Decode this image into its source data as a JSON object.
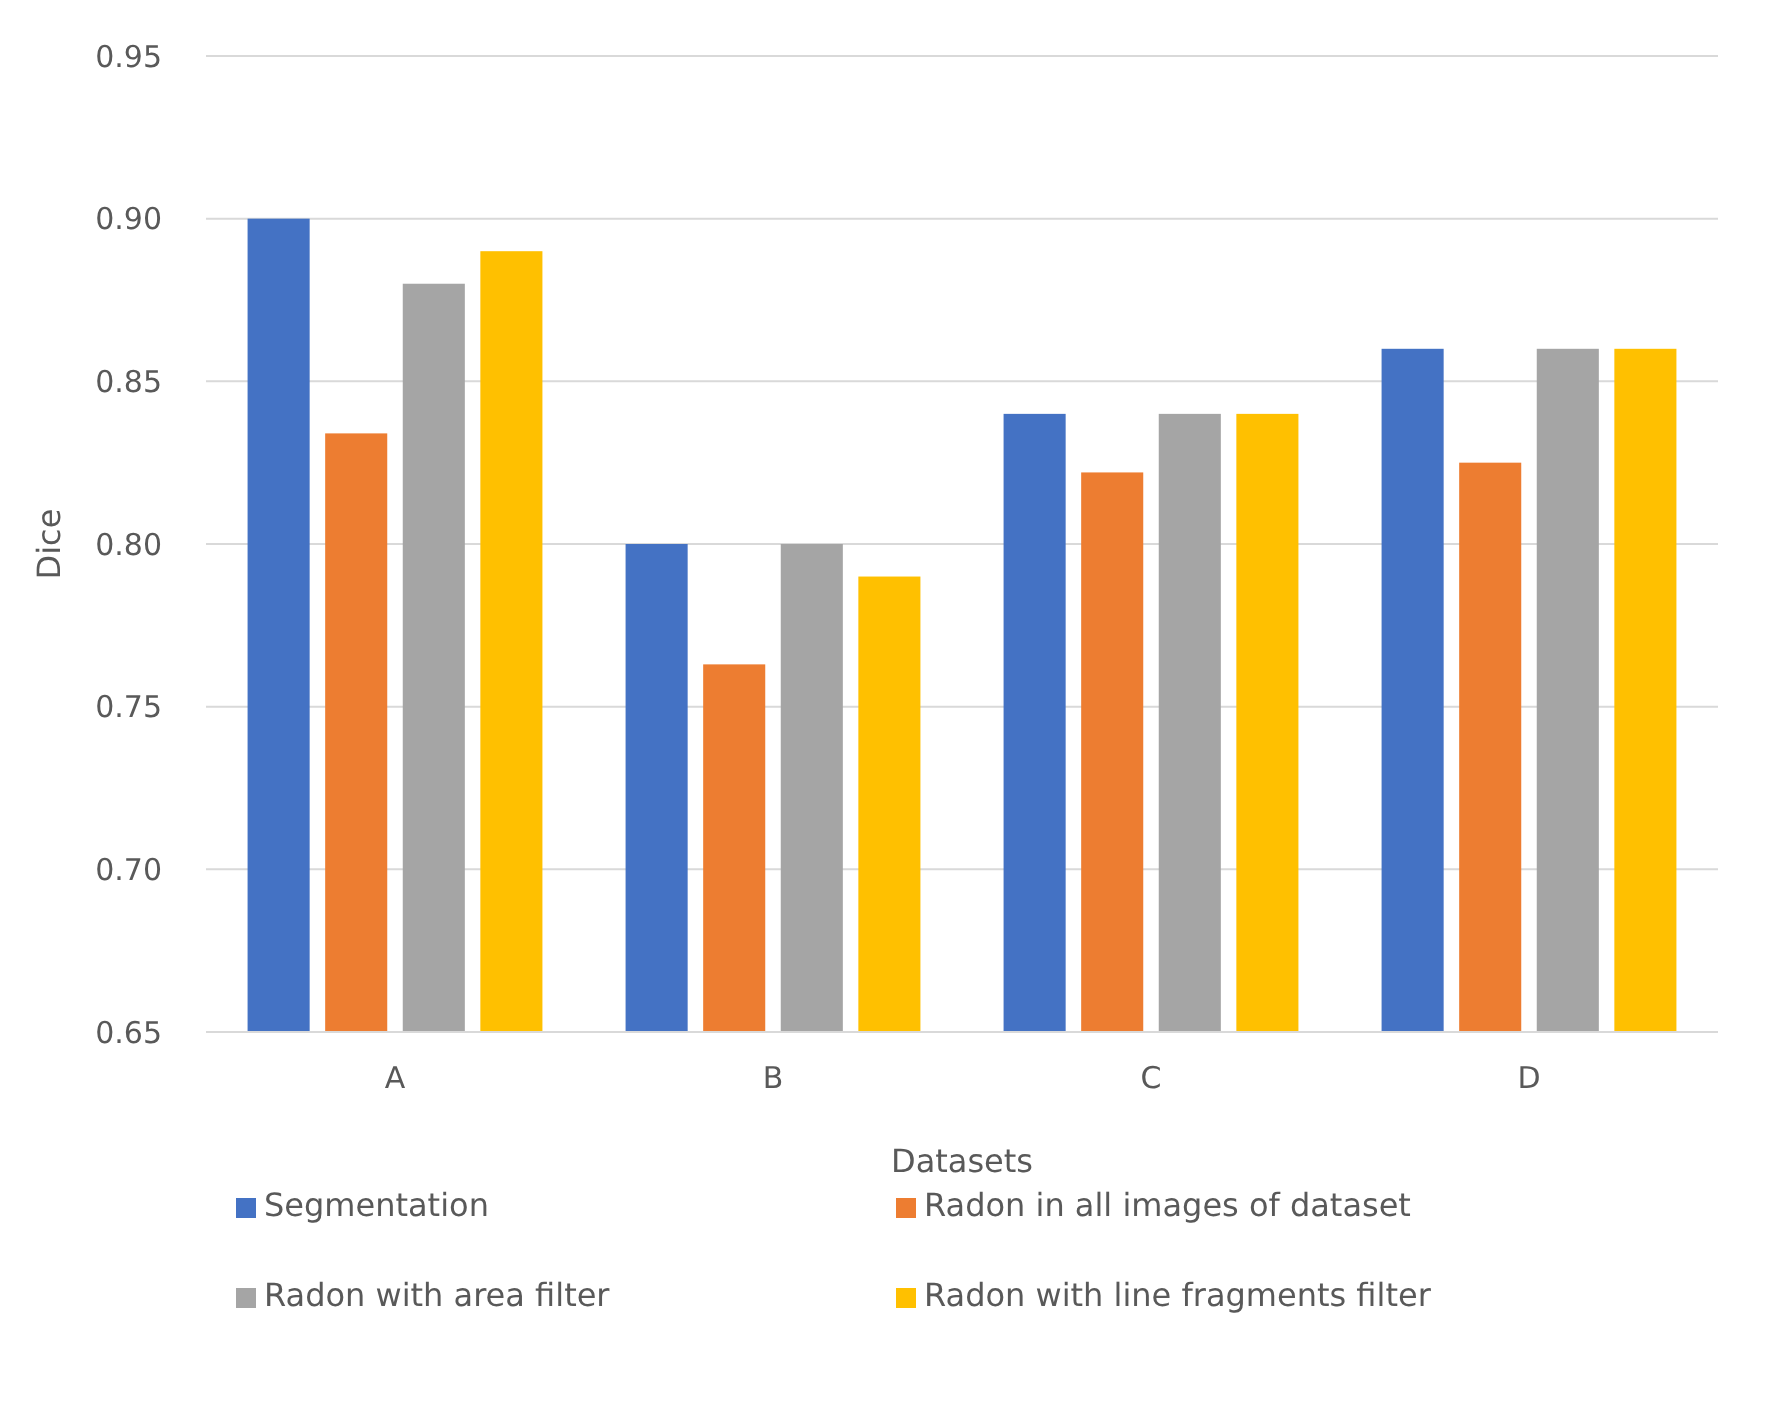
{
  "chart_data": {
    "type": "bar",
    "xlabel": "Datasets",
    "ylabel": "Dice",
    "categories": [
      "A",
      "B",
      "C",
      "D"
    ],
    "series": [
      {
        "name": "Segmentation",
        "color": "#4472c4",
        "values": [
          0.9,
          0.8,
          0.84,
          0.86
        ]
      },
      {
        "name": "Radon in all images of dataset",
        "color": "#ed7d31",
        "values": [
          0.834,
          0.763,
          0.822,
          0.825
        ]
      },
      {
        "name": "Radon with area filter",
        "color": "#a5a5a5",
        "values": [
          0.88,
          0.8,
          0.84,
          0.86
        ]
      },
      {
        "name": "Radon with line fragments filter",
        "color": "#ffc000",
        "values": [
          0.89,
          0.79,
          0.84,
          0.86
        ]
      }
    ],
    "ylim": [
      0.65,
      0.95
    ],
    "yticks": [
      {
        "value": 0.65,
        "label": "0.65"
      },
      {
        "value": 0.7,
        "label": "0.70"
      },
      {
        "value": 0.75,
        "label": "0.75"
      },
      {
        "value": 0.8,
        "label": "0.80"
      },
      {
        "value": 0.85,
        "label": "0.85"
      },
      {
        "value": 0.9,
        "label": "0.90"
      },
      {
        "value": 0.95,
        "label": "0.95"
      }
    ],
    "grid": "y",
    "legend": "bottom"
  }
}
